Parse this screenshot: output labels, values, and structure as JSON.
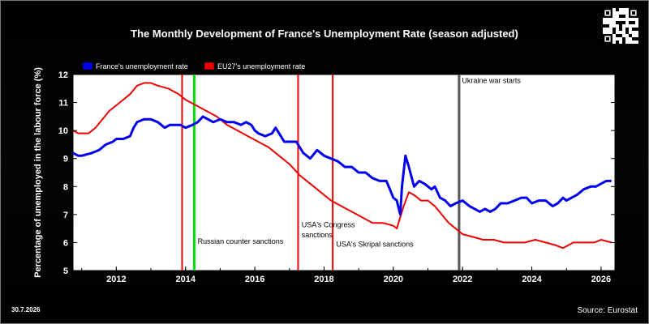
{
  "chart_data": {
    "type": "line",
    "title": "The Monthly Development of France's Unemployment Rate (season adjusted)",
    "ylabel": "Percentage of unemployed in the labour force (%)",
    "xlabel": "",
    "xlim": [
      2010.75,
      2026.4
    ],
    "ylim": [
      5,
      12
    ],
    "x_ticks": [
      2012,
      2014,
      2016,
      2018,
      2020,
      2022,
      2024,
      2026
    ],
    "y_ticks": [
      5,
      6,
      7,
      8,
      9,
      10,
      11,
      12
    ],
    "grid": false,
    "legend_position": "top-left",
    "series": [
      {
        "name": "France's unemployment rate",
        "color": "#0000ee",
        "x": [
          2010.75,
          2010.9,
          2011.0,
          2011.3,
          2011.5,
          2011.7,
          2011.9,
          2012.0,
          2012.2,
          2012.4,
          2012.5,
          2012.6,
          2012.8,
          2013.0,
          2013.2,
          2013.4,
          2013.55,
          2013.7,
          2013.85,
          2014.0,
          2014.2,
          2014.35,
          2014.5,
          2014.65,
          2014.8,
          2015.0,
          2015.2,
          2015.4,
          2015.6,
          2015.75,
          2015.9,
          2016.0,
          2016.1,
          2016.3,
          2016.5,
          2016.6,
          2016.7,
          2016.85,
          2017.0,
          2017.2,
          2017.4,
          2017.6,
          2017.8,
          2018.0,
          2018.2,
          2018.4,
          2018.6,
          2018.8,
          2019.0,
          2019.2,
          2019.4,
          2019.6,
          2019.8,
          2019.9,
          2020.0,
          2020.1,
          2020.2,
          2020.25,
          2020.35,
          2020.45,
          2020.6,
          2020.75,
          2020.9,
          2021.1,
          2021.2,
          2021.35,
          2021.5,
          2021.65,
          2021.8,
          2022.0,
          2022.2,
          2022.35,
          2022.5,
          2022.65,
          2022.8,
          2022.95,
          2023.1,
          2023.3,
          2023.5,
          2023.7,
          2023.85,
          2024.0,
          2024.2,
          2024.4,
          2024.6,
          2024.75,
          2024.9,
          2025.0,
          2025.15,
          2025.3,
          2025.5,
          2025.7,
          2025.85,
          2026.0,
          2026.15,
          2026.3
        ],
        "y": [
          9.2,
          9.1,
          9.1,
          9.2,
          9.3,
          9.5,
          9.6,
          9.7,
          9.7,
          9.8,
          10.1,
          10.3,
          10.4,
          10.4,
          10.3,
          10.1,
          10.2,
          10.2,
          10.2,
          10.1,
          10.2,
          10.3,
          10.5,
          10.4,
          10.3,
          10.4,
          10.3,
          10.3,
          10.2,
          10.3,
          10.2,
          10.0,
          9.9,
          9.8,
          9.9,
          10.1,
          9.9,
          9.6,
          9.6,
          9.6,
          9.2,
          9.0,
          9.3,
          9.1,
          9.0,
          8.9,
          8.7,
          8.7,
          8.5,
          8.5,
          8.3,
          8.2,
          8.2,
          7.9,
          7.6,
          7.5,
          7.0,
          8.0,
          9.1,
          8.7,
          8.0,
          8.2,
          8.1,
          7.9,
          8.0,
          7.6,
          7.5,
          7.3,
          7.4,
          7.5,
          7.3,
          7.2,
          7.1,
          7.2,
          7.1,
          7.2,
          7.4,
          7.4,
          7.5,
          7.6,
          7.6,
          7.4,
          7.5,
          7.5,
          7.3,
          7.4,
          7.6,
          7.5,
          7.6,
          7.7,
          7.9,
          8.0,
          8.0,
          8.1,
          8.2,
          8.2
        ]
      },
      {
        "name": "EU27's unemployment rate",
        "color": "#ee0000",
        "x": [
          2010.75,
          2010.9,
          2011.0,
          2011.2,
          2011.4,
          2011.6,
          2011.8,
          2012.0,
          2012.2,
          2012.4,
          2012.6,
          2012.8,
          2013.0,
          2013.2,
          2013.5,
          2013.8,
          2014.0,
          2014.3,
          2014.6,
          2014.9,
          2015.2,
          2015.5,
          2015.8,
          2016.1,
          2016.4,
          2016.7,
          2017.0,
          2017.3,
          2017.6,
          2017.9,
          2018.2,
          2018.5,
          2018.8,
          2019.1,
          2019.4,
          2019.7,
          2020.0,
          2020.1,
          2020.3,
          2020.45,
          2020.6,
          2020.8,
          2021.0,
          2021.2,
          2021.4,
          2021.6,
          2021.8,
          2022.0,
          2022.3,
          2022.6,
          2022.9,
          2023.2,
          2023.5,
          2023.8,
          2024.1,
          2024.4,
          2024.7,
          2024.9,
          2025.2,
          2025.5,
          2025.8,
          2026.0,
          2026.3
        ],
        "y": [
          10.0,
          9.9,
          9.9,
          9.9,
          10.1,
          10.4,
          10.7,
          10.9,
          11.1,
          11.3,
          11.6,
          11.7,
          11.7,
          11.6,
          11.5,
          11.3,
          11.1,
          10.9,
          10.7,
          10.5,
          10.2,
          10.0,
          9.8,
          9.6,
          9.4,
          9.1,
          8.8,
          8.4,
          8.1,
          7.8,
          7.5,
          7.3,
          7.1,
          6.9,
          6.7,
          6.7,
          6.6,
          6.5,
          7.3,
          7.8,
          7.7,
          7.5,
          7.5,
          7.3,
          7.0,
          6.7,
          6.5,
          6.3,
          6.2,
          6.1,
          6.1,
          6.0,
          6.0,
          6.0,
          6.1,
          6.0,
          5.9,
          5.8,
          6.0,
          6.0,
          6.0,
          6.1,
          6.0
        ]
      }
    ],
    "vertical_lines": [
      {
        "x": 2013.9,
        "color": "#ee0000"
      },
      {
        "x": 2014.25,
        "color": "#00dd00"
      },
      {
        "x": 2017.25,
        "color": "#ee0000"
      },
      {
        "x": 2018.25,
        "color": "#ee0000"
      },
      {
        "x": 2021.9,
        "color": "#555555"
      }
    ],
    "annotations": [
      {
        "text": "Russian counter sanctions",
        "x": 2014.35,
        "y": 5.95
      },
      {
        "text": "USA's Congress",
        "x": 2017.35,
        "y": 6.55
      },
      {
        "text": "sanctions",
        "x": 2017.35,
        "y": 6.18
      },
      {
        "text": "USA's Skripal sanctions",
        "x": 2018.35,
        "y": 5.85
      },
      {
        "text": "Ukraine war starts",
        "x": 2021.98,
        "y": 11.7
      }
    ]
  },
  "date_stamp": "30.7.2026",
  "source_note": "Source: Eurostat"
}
